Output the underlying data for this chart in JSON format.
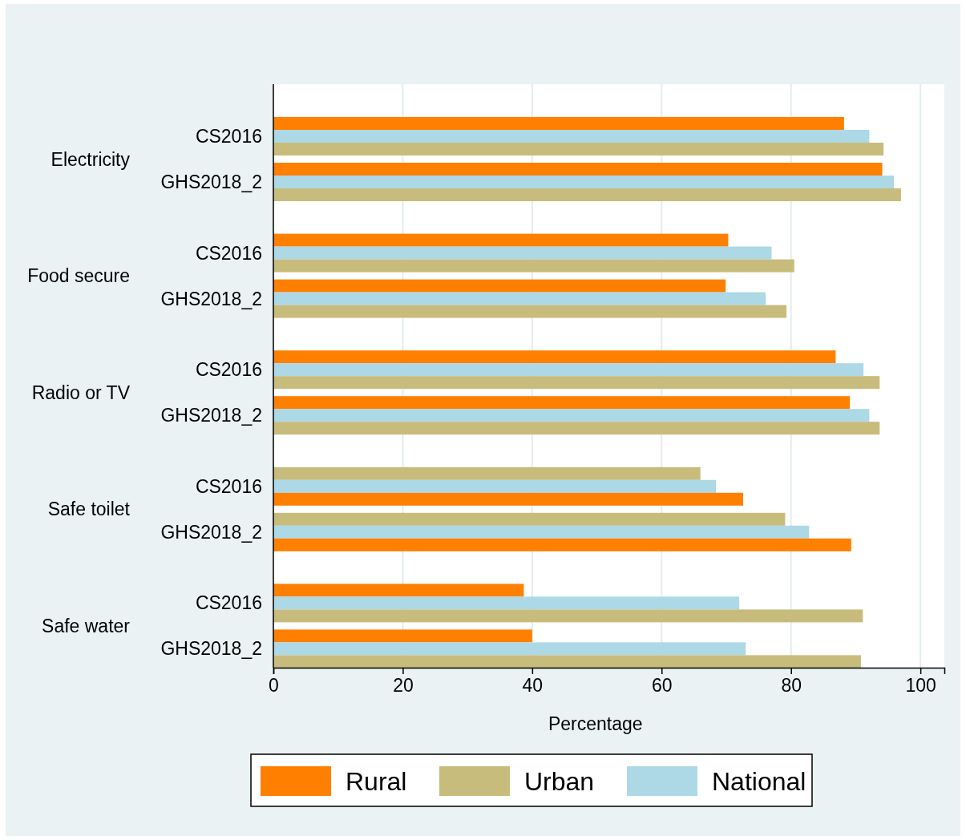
{
  "chart_data": {
    "type": "bar",
    "orientation": "horizontal",
    "xlabel": "Percentage",
    "categories": [
      "CS2016",
      "GHS2018_2",
      "CS2016",
      "GHS2018_2",
      "CS2016",
      "GHS2018_2",
      "CS2016",
      "GHS2018_2",
      "CS2016",
      "GHS2018_2"
    ],
    "annotations": [
      "Electricity",
      "Food secure",
      "Radio or TV",
      "Safe toilet",
      "Safe water"
    ],
    "series": [
      {
        "name": "Rural",
        "color": "#ff7f00",
        "values": [
          88.2,
          94.1,
          70.3,
          69.9,
          86.9,
          89.1,
          72.6,
          89.3,
          38.7,
          40.0
        ]
      },
      {
        "name": "Urban",
        "color": "#c8bc7c",
        "values": [
          94.3,
          97.0,
          80.5,
          79.3,
          93.7,
          93.7,
          66.0,
          79.1,
          91.1,
          90.8
        ]
      },
      {
        "name": "National",
        "color": "#add8e6",
        "values": [
          92.1,
          95.9,
          77.0,
          76.1,
          91.2,
          92.1,
          68.4,
          82.8,
          72.0,
          73.0
        ]
      }
    ],
    "xlim": [
      0,
      103.7
    ],
    "xticks": [
      0,
      20,
      40,
      60,
      80,
      100
    ],
    "grid": "x",
    "legend": "bottom"
  }
}
